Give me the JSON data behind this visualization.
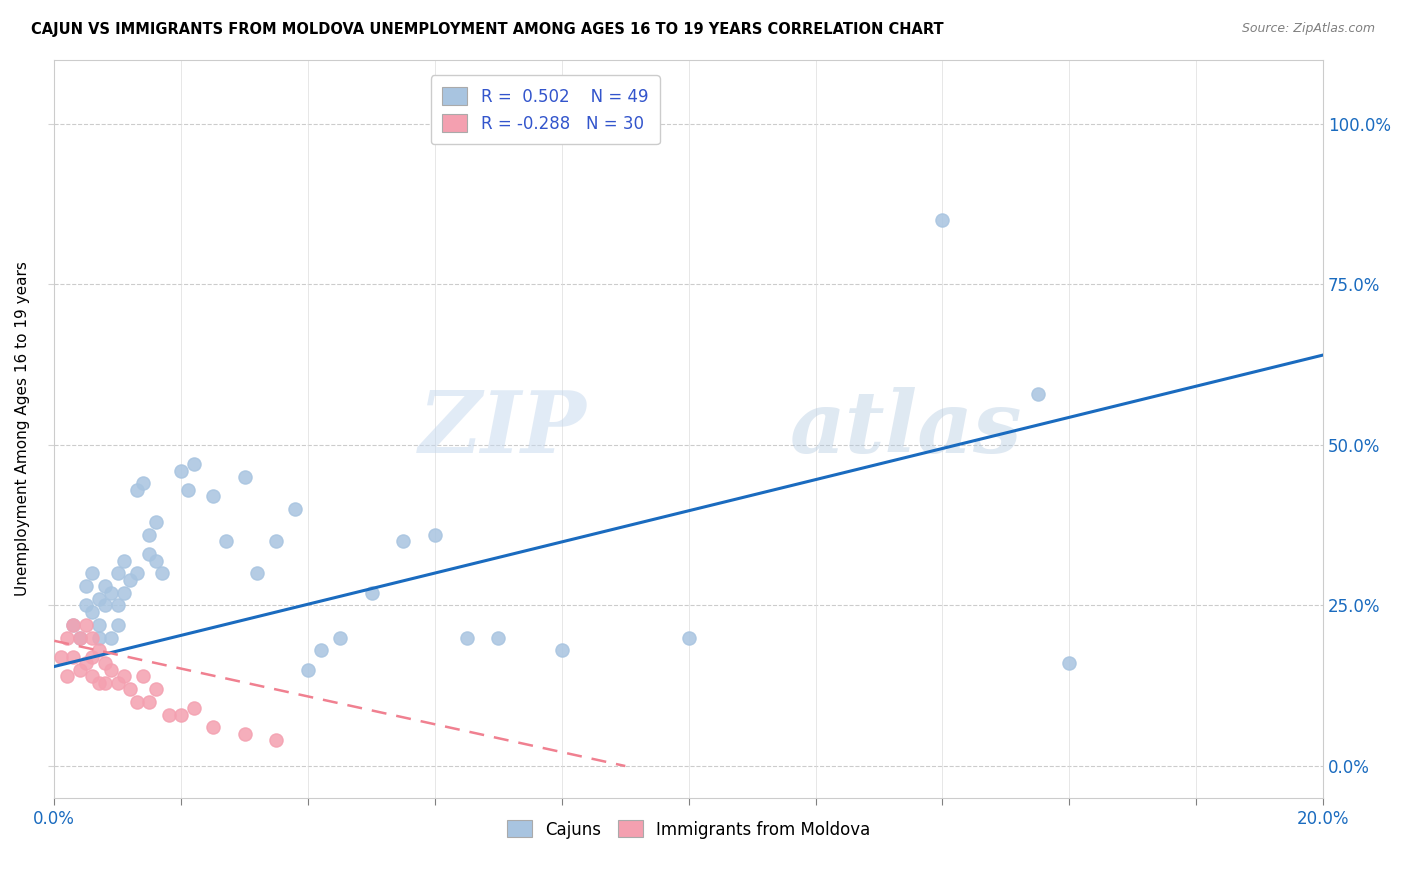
{
  "title": "CAJUN VS IMMIGRANTS FROM MOLDOVA UNEMPLOYMENT AMONG AGES 16 TO 19 YEARS CORRELATION CHART",
  "source": "Source: ZipAtlas.com",
  "ylabel": "Unemployment Among Ages 16 to 19 years",
  "xlim": [
    0.0,
    0.2
  ],
  "ylim": [
    -0.05,
    1.1
  ],
  "y_ticks": [
    0.0,
    0.25,
    0.5,
    0.75,
    1.0
  ],
  "y_tick_labels": [
    "0.0%",
    "25.0%",
    "50.0%",
    "75.0%",
    "100.0%"
  ],
  "cajun_R": 0.502,
  "cajun_N": 49,
  "moldova_R": -0.288,
  "moldova_N": 30,
  "cajun_color": "#a8c4e0",
  "moldova_color": "#f4a0b0",
  "cajun_line_color": "#1a6bbf",
  "moldova_line_color": "#f08090",
  "legend_text_color": "#3355cc",
  "watermark_zip": "ZIP",
  "watermark_atlas": "atlas",
  "cajun_x": [
    0.003,
    0.004,
    0.005,
    0.005,
    0.006,
    0.006,
    0.007,
    0.007,
    0.007,
    0.008,
    0.008,
    0.009,
    0.009,
    0.01,
    0.01,
    0.01,
    0.011,
    0.011,
    0.012,
    0.013,
    0.013,
    0.014,
    0.015,
    0.015,
    0.016,
    0.016,
    0.017,
    0.02,
    0.021,
    0.022,
    0.025,
    0.027,
    0.03,
    0.032,
    0.035,
    0.038,
    0.04,
    0.042,
    0.045,
    0.05,
    0.055,
    0.06,
    0.065,
    0.07,
    0.08,
    0.1,
    0.14,
    0.155,
    0.16
  ],
  "cajun_y": [
    0.22,
    0.2,
    0.25,
    0.28,
    0.24,
    0.3,
    0.2,
    0.22,
    0.26,
    0.25,
    0.28,
    0.2,
    0.27,
    0.22,
    0.25,
    0.3,
    0.27,
    0.32,
    0.29,
    0.3,
    0.43,
    0.44,
    0.33,
    0.36,
    0.32,
    0.38,
    0.3,
    0.46,
    0.43,
    0.47,
    0.42,
    0.35,
    0.45,
    0.3,
    0.35,
    0.4,
    0.15,
    0.18,
    0.2,
    0.27,
    0.35,
    0.36,
    0.2,
    0.2,
    0.18,
    0.2,
    0.85,
    0.58,
    0.16
  ],
  "moldova_x": [
    0.001,
    0.002,
    0.002,
    0.003,
    0.003,
    0.004,
    0.004,
    0.005,
    0.005,
    0.006,
    0.006,
    0.006,
    0.007,
    0.007,
    0.008,
    0.008,
    0.009,
    0.01,
    0.011,
    0.012,
    0.013,
    0.014,
    0.015,
    0.016,
    0.018,
    0.02,
    0.022,
    0.025,
    0.03,
    0.035
  ],
  "moldova_y": [
    0.17,
    0.14,
    0.2,
    0.17,
    0.22,
    0.15,
    0.2,
    0.16,
    0.22,
    0.14,
    0.17,
    0.2,
    0.13,
    0.18,
    0.13,
    0.16,
    0.15,
    0.13,
    0.14,
    0.12,
    0.1,
    0.14,
    0.1,
    0.12,
    0.08,
    0.08,
    0.09,
    0.06,
    0.05,
    0.04
  ],
  "cajun_line_x": [
    0.0,
    0.2
  ],
  "cajun_line_y": [
    0.155,
    0.64
  ],
  "moldova_line_x": [
    0.0,
    0.09
  ],
  "moldova_line_y": [
    0.195,
    0.0
  ]
}
